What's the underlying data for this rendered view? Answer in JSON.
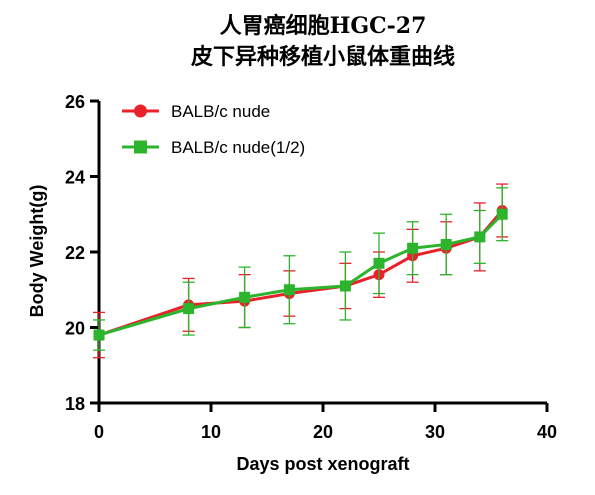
{
  "chart_data": {
    "type": "line",
    "title": [
      "人胃癌细胞HGC-27",
      "皮下异种移植小鼠体重曲线"
    ],
    "xlabel": "Days post xenograft",
    "ylabel": "Body Weight(g)",
    "xlim": [
      0,
      40
    ],
    "ylim": [
      18,
      26
    ],
    "xticks": [
      "0",
      "10",
      "20",
      "30",
      "40"
    ],
    "yticks": [
      "18",
      "20",
      "22",
      "24",
      "26"
    ],
    "grid": false,
    "legend_position": "top-left",
    "series": [
      {
        "name": "BALB/c nude",
        "color": "#e8212a",
        "marker": "circle",
        "x": [
          0,
          8,
          13,
          17,
          22,
          25,
          28,
          31,
          34,
          36
        ],
        "y": [
          19.8,
          20.6,
          20.7,
          20.9,
          21.1,
          21.4,
          21.9,
          22.1,
          22.4,
          23.1
        ],
        "err": [
          0.6,
          0.7,
          0.7,
          0.6,
          0.6,
          0.6,
          0.7,
          0.7,
          0.9,
          0.7
        ]
      },
      {
        "name": "BALB/c nude(1/2)",
        "color": "#2cb52c",
        "marker": "square",
        "x": [
          0,
          8,
          13,
          17,
          22,
          25,
          28,
          31,
          34,
          36
        ],
        "y": [
          19.8,
          20.5,
          20.8,
          21.0,
          21.1,
          21.7,
          22.1,
          22.2,
          22.4,
          23.0
        ],
        "err": [
          0.4,
          0.7,
          0.8,
          0.9,
          0.9,
          0.8,
          0.7,
          0.8,
          0.7,
          0.7
        ]
      }
    ]
  }
}
